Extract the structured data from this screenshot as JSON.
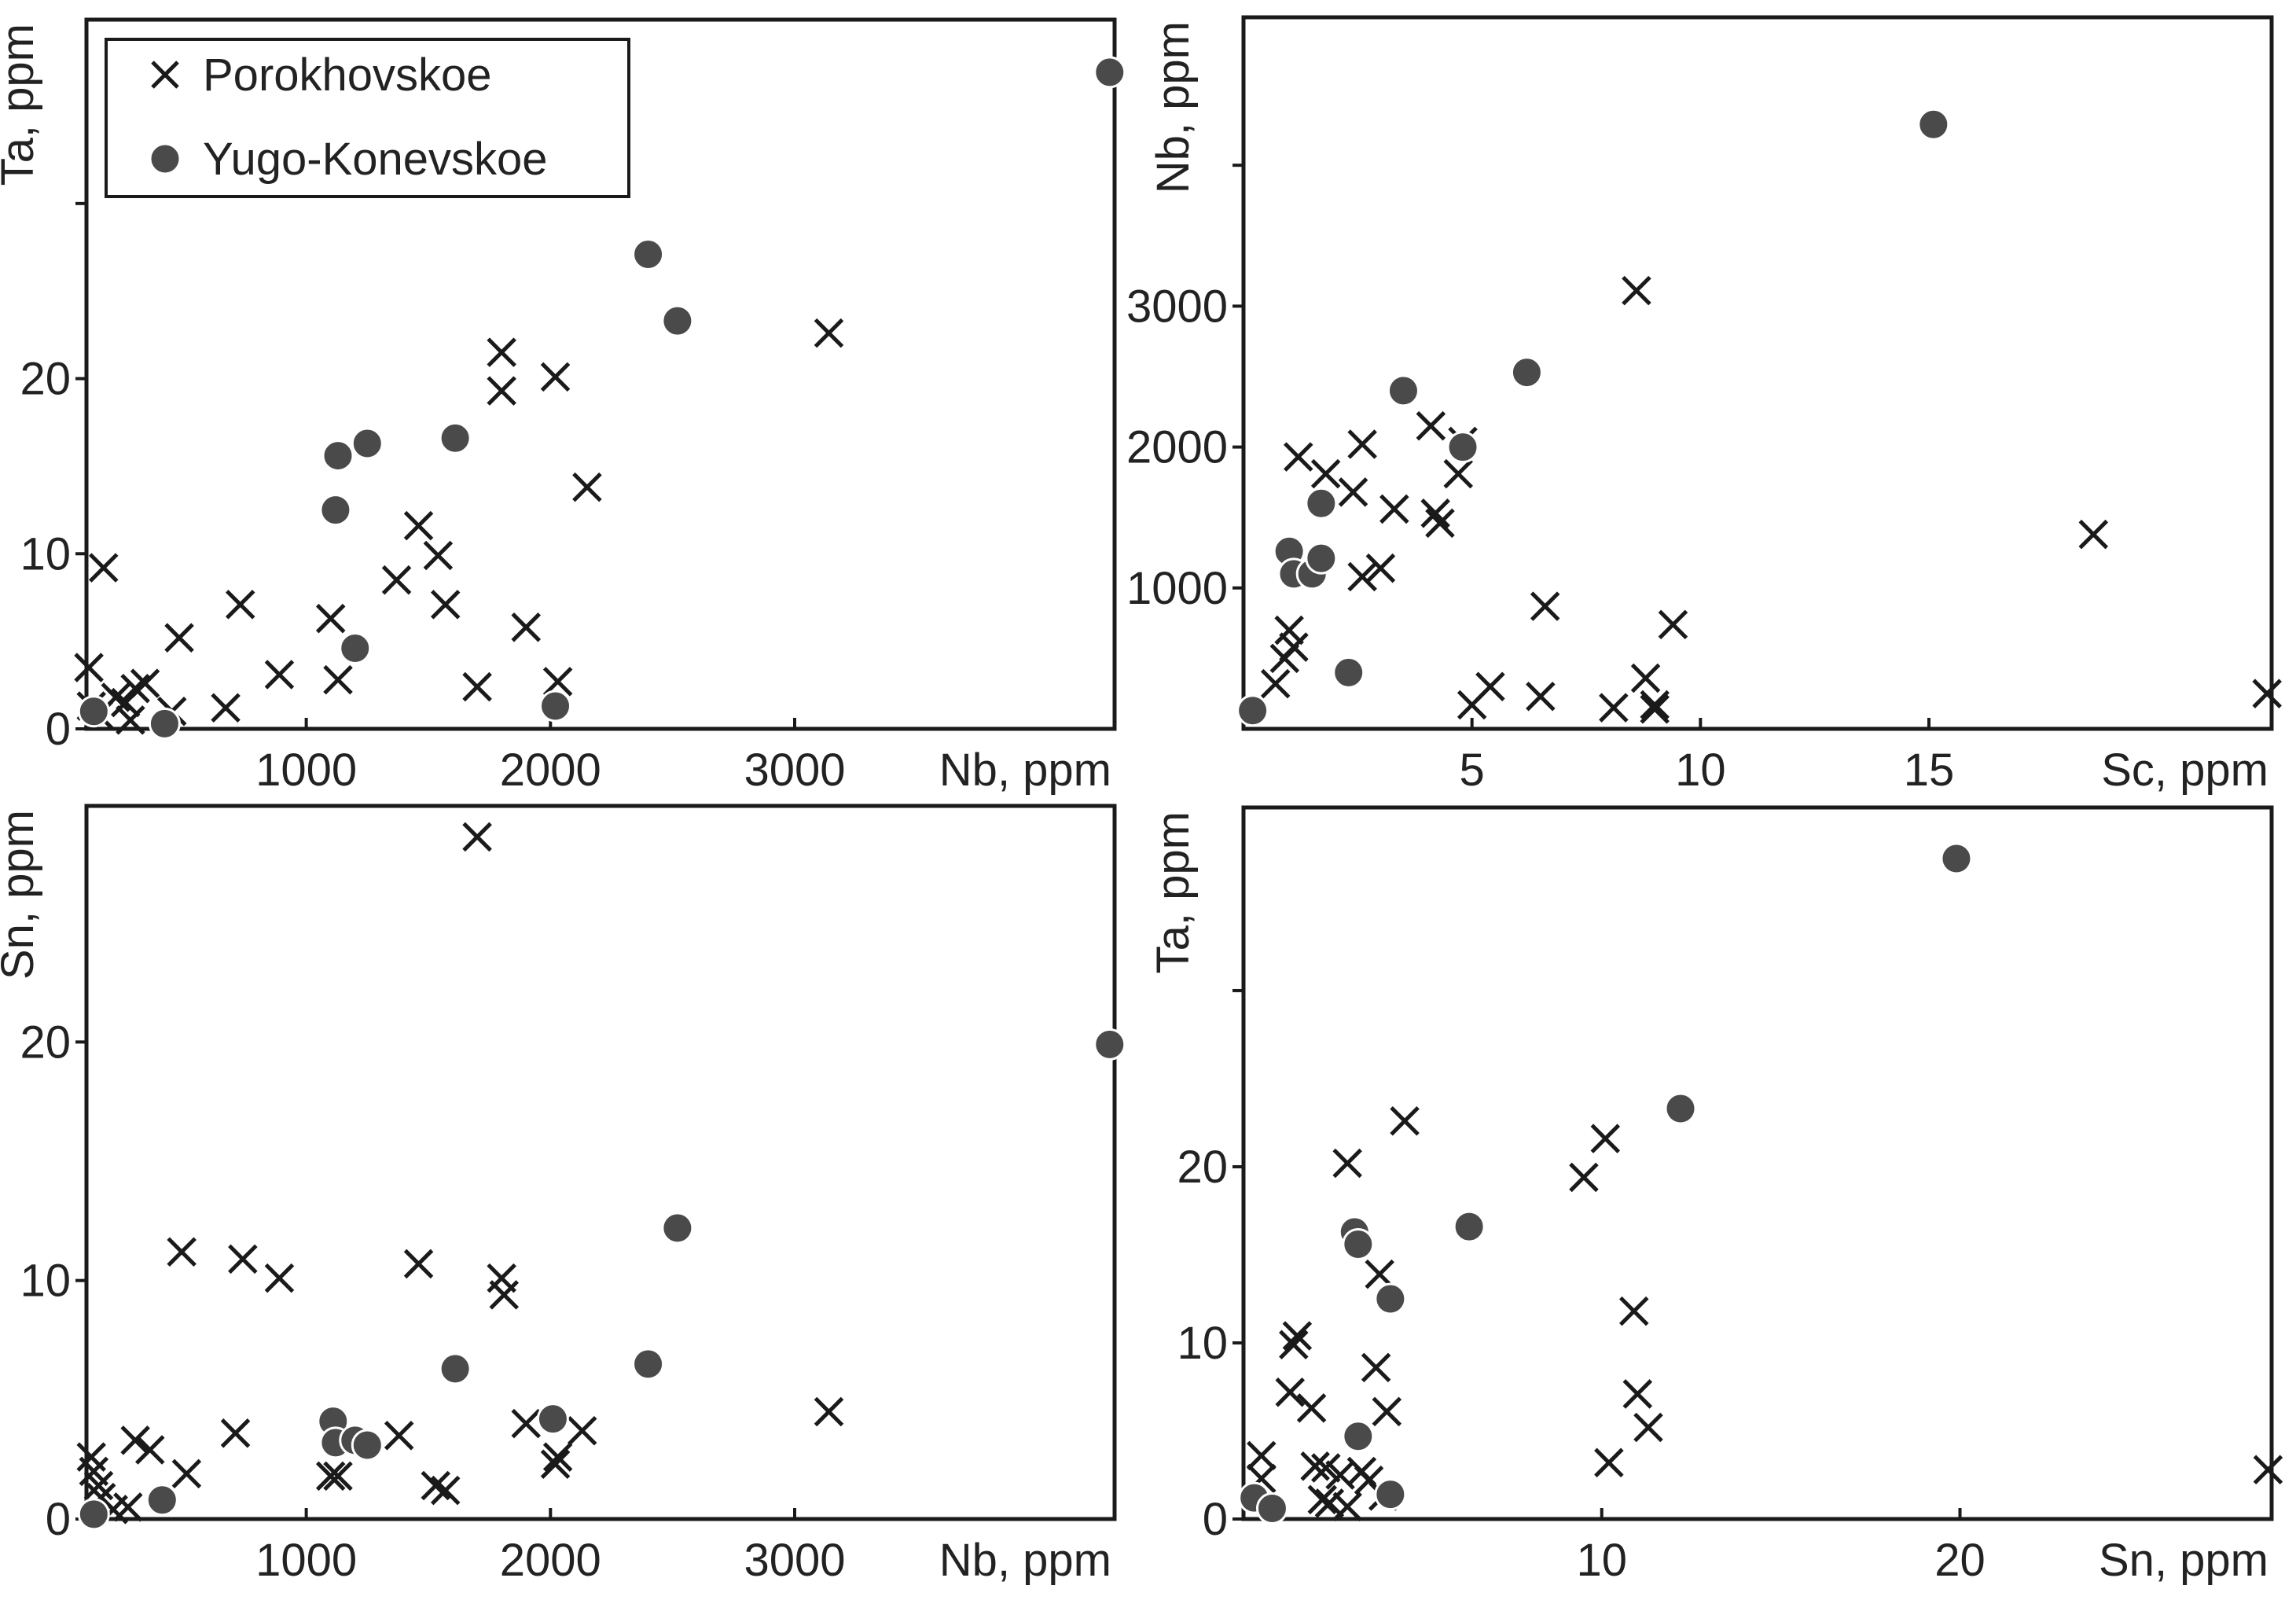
{
  "colors": {
    "cross": "#1a1a1a",
    "dot": "#4a4a4a",
    "frame": "#1a1a1a",
    "text": "#222222"
  },
  "legend": {
    "items": [
      {
        "name": "Porokhovskoe",
        "marker": "cross"
      },
      {
        "name": "Yugo-Konevskoe",
        "marker": "circle"
      }
    ]
  },
  "chart_data": [
    {
      "type": "scatter",
      "id": "ta_vs_nb",
      "xlabel": "Nb, ppm",
      "ylabel": "Ta, ppm",
      "xlim": [
        100,
        4310
      ],
      "ylim": [
        0,
        40.5
      ],
      "xticks": [
        1000,
        2000,
        3000
      ],
      "yticks": [
        0,
        10,
        20
      ],
      "yticks_unlabeled": [
        30
      ],
      "legend": "top-left",
      "series": [
        {
          "name": "Porokhovskoe",
          "marker": "cross",
          "points": [
            [
              110,
              3.5
            ],
            [
              170,
              9.2
            ],
            [
              120,
              1.3
            ],
            [
              150,
              0.8
            ],
            [
              220,
              1.8
            ],
            [
              260,
              1.5
            ],
            [
              300,
              2.3
            ],
            [
              340,
              2.6
            ],
            [
              280,
              0.5
            ],
            [
              450,
              1.0
            ],
            [
              480,
              5.2
            ],
            [
              670,
              1.2
            ],
            [
              730,
              7.1
            ],
            [
              890,
              3.1
            ],
            [
              1100,
              6.3
            ],
            [
              1130,
              2.8
            ],
            [
              1370,
              8.5
            ],
            [
              1460,
              11.6
            ],
            [
              1540,
              9.9
            ],
            [
              1570,
              7.1
            ],
            [
              1700,
              2.4
            ],
            [
              1800,
              21.5
            ],
            [
              1800,
              19.3
            ],
            [
              1900,
              5.8
            ],
            [
              2020,
              20.1
            ],
            [
              2030,
              2.7
            ],
            [
              2150,
              13.8
            ],
            [
              3140,
              22.6
            ]
          ]
        },
        {
          "name": "Yugo-Konevskoe",
          "marker": "circle",
          "points": [
            [
              130,
              1.0
            ],
            [
              420,
              0.3
            ],
            [
              1120,
              12.5
            ],
            [
              1130,
              15.6
            ],
            [
              1200,
              4.6
            ],
            [
              1250,
              16.3
            ],
            [
              1610,
              16.6
            ],
            [
              2020,
              1.3
            ],
            [
              2400,
              27.1
            ],
            [
              2520,
              23.3
            ],
            [
              4290,
              37.5
            ]
          ]
        }
      ]
    },
    {
      "type": "scatter",
      "id": "nb_vs_sc",
      "xlabel": "Sc, ppm",
      "ylabel": "Nb, ppm",
      "xlim": [
        0,
        22.5
      ],
      "ylim": [
        0,
        5050
      ],
      "xticks": [
        5,
        10,
        15
      ],
      "yticks": [
        1000,
        2000,
        3000
      ],
      "yticks_unlabeled": [
        4000
      ],
      "series": [
        {
          "name": "Porokhovskoe",
          "marker": "cross",
          "points": [
            [
              0.7,
              320
            ],
            [
              0.9,
              500
            ],
            [
              1.0,
              700
            ],
            [
              1.1,
              580
            ],
            [
              1.2,
              1930
            ],
            [
              1.8,
              1810
            ],
            [
              2.4,
              1680
            ],
            [
              2.6,
              2020
            ],
            [
              2.6,
              1080
            ],
            [
              3.0,
              1140
            ],
            [
              3.3,
              1560
            ],
            [
              4.1,
              2150
            ],
            [
              4.2,
              1530
            ],
            [
              4.3,
              1460
            ],
            [
              4.7,
              1810
            ],
            [
              4.8,
              2040
            ],
            [
              5.0,
              170
            ],
            [
              5.4,
              300
            ],
            [
              6.5,
              230
            ],
            [
              6.6,
              870
            ],
            [
              8.1,
              150
            ],
            [
              8.6,
              3110
            ],
            [
              8.8,
              360
            ],
            [
              9.0,
              140
            ],
            [
              9.0,
              170
            ],
            [
              9.4,
              740
            ],
            [
              18.6,
              1380
            ],
            [
              22.4,
              250
            ]
          ]
        },
        {
          "name": "Yugo-Konevskoe",
          "marker": "circle",
          "points": [
            [
              0.2,
              130
            ],
            [
              1.0,
              1260
            ],
            [
              1.1,
              1100
            ],
            [
              1.5,
              1100
            ],
            [
              1.7,
              1210
            ],
            [
              1.7,
              1600
            ],
            [
              2.3,
              400
            ],
            [
              3.5,
              2400
            ],
            [
              4.8,
              2000
            ],
            [
              6.2,
              2530
            ],
            [
              15.1,
              4290
            ]
          ]
        }
      ]
    },
    {
      "type": "scatter",
      "id": "sn_vs_nb",
      "xlabel": "Nb, ppm",
      "ylabel": "Sn, ppm",
      "xlim": [
        100,
        4310
      ],
      "ylim": [
        0,
        29.9
      ],
      "xticks": [
        1000,
        2000,
        3000
      ],
      "yticks": [
        0,
        10,
        20
      ],
      "series": [
        {
          "name": "Porokhovskoe",
          "marker": "cross",
          "points": [
            [
              120,
              2.6
            ],
            [
              130,
              2.0
            ],
            [
              150,
              1.4
            ],
            [
              160,
              0.9
            ],
            [
              210,
              0.4
            ],
            [
              270,
              0.5
            ],
            [
              300,
              3.3
            ],
            [
              360,
              2.9
            ],
            [
              490,
              11.2
            ],
            [
              510,
              1.9
            ],
            [
              710,
              3.6
            ],
            [
              740,
              10.9
            ],
            [
              890,
              10.1
            ],
            [
              1100,
              1.8
            ],
            [
              1130,
              1.8
            ],
            [
              1380,
              3.5
            ],
            [
              1460,
              10.7
            ],
            [
              1530,
              1.4
            ],
            [
              1570,
              1.2
            ],
            [
              1700,
              28.6
            ],
            [
              1800,
              10.1
            ],
            [
              1810,
              9.4
            ],
            [
              1900,
              4.0
            ],
            [
              2020,
              2.3
            ],
            [
              2030,
              2.6
            ],
            [
              2130,
              3.7
            ],
            [
              3140,
              4.5
            ]
          ]
        },
        {
          "name": "Yugo-Konevskoe",
          "marker": "circle",
          "points": [
            [
              130,
              0.2
            ],
            [
              410,
              0.8
            ],
            [
              1110,
              4.1
            ],
            [
              1120,
              3.2
            ],
            [
              1200,
              3.3
            ],
            [
              1250,
              3.1
            ],
            [
              1610,
              6.3
            ],
            [
              2010,
              4.2
            ],
            [
              2400,
              6.5
            ],
            [
              2520,
              12.2
            ],
            [
              4290,
              19.9
            ]
          ]
        }
      ]
    },
    {
      "type": "scatter",
      "id": "ta_vs_sn",
      "xlabel": "Sn, ppm",
      "ylabel": "Ta, ppm",
      "xlim": [
        0,
        28.7
      ],
      "ylim": [
        0,
        40.4
      ],
      "xticks": [
        10,
        20
      ],
      "yticks": [
        0,
        10,
        20
      ],
      "yticks_unlabeled": [
        30
      ],
      "series": [
        {
          "name": "Porokhovskoe",
          "marker": "cross",
          "points": [
            [
              0.5,
              3.6
            ],
            [
              0.5,
              2.3
            ],
            [
              1.3,
              7.2
            ],
            [
              1.4,
              9.9
            ],
            [
              1.5,
              10.4
            ],
            [
              1.9,
              6.3
            ],
            [
              2.0,
              3.0
            ],
            [
              2.2,
              1.1
            ],
            [
              2.3,
              2.9
            ],
            [
              2.4,
              0.9
            ],
            [
              2.7,
              2.5
            ],
            [
              2.9,
              20.2
            ],
            [
              2.9,
              0.7
            ],
            [
              3.3,
              2.7
            ],
            [
              3.5,
              2.2
            ],
            [
              3.7,
              8.6
            ],
            [
              3.8,
              13.9
            ],
            [
              3.9,
              1.3
            ],
            [
              4.0,
              6.1
            ],
            [
              4.5,
              22.6
            ],
            [
              9.5,
              19.4
            ],
            [
              10.1,
              21.6
            ],
            [
              10.2,
              3.2
            ],
            [
              10.9,
              11.8
            ],
            [
              11.0,
              7.1
            ],
            [
              11.3,
              5.2
            ],
            [
              28.6,
              2.8
            ]
          ]
        },
        {
          "name": "Yugo-Konevskoe",
          "marker": "circle",
          "points": [
            [
              0.3,
              1.2
            ],
            [
              0.8,
              0.6
            ],
            [
              3.1,
              16.3
            ],
            [
              3.2,
              4.7
            ],
            [
              3.2,
              15.6
            ],
            [
              4.1,
              12.5
            ],
            [
              4.1,
              1.4
            ],
            [
              6.3,
              16.6
            ],
            [
              12.2,
              23.3
            ],
            [
              19.9,
              37.5
            ]
          ]
        }
      ]
    }
  ]
}
